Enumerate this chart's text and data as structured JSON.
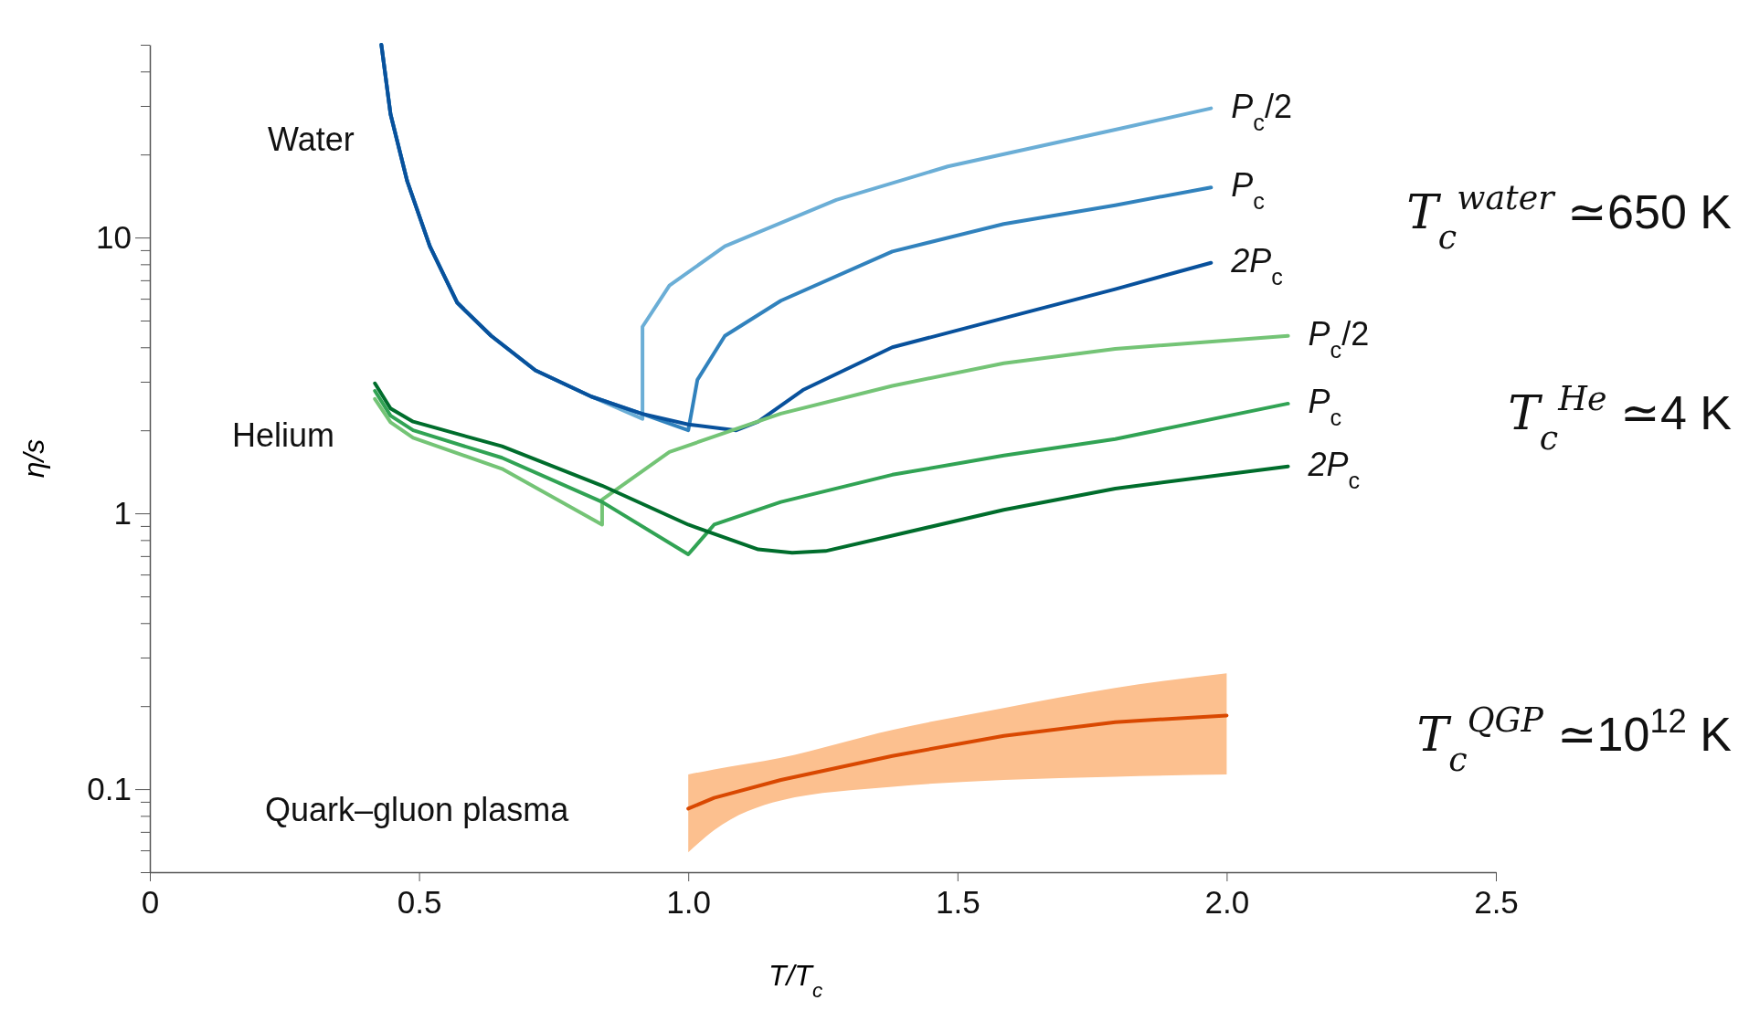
{
  "chart_data": {
    "type": "line",
    "xlabel": "T/T$_{c}$",
    "ylabel": "η/s",
    "log": "y",
    "xlim": [
      0,
      2.5
    ],
    "ylim": [
      0.05,
      50
    ],
    "xticks": [
      0,
      0.5,
      {
        "value": 1,
        "label": "1.0"
      },
      1.5,
      {
        "value": 2,
        "label": "2.0"
      },
      2.5
    ],
    "yticks": [
      {
        "value": 0.05,
        "label": null
      },
      {
        "value": 0.06,
        "label": null
      },
      {
        "value": 0.07,
        "label": null
      },
      {
        "value": 0.08,
        "label": null
      },
      {
        "value": 0.09,
        "label": null
      },
      0.1,
      {
        "value": 0.2,
        "label": null
      },
      {
        "value": 0.3,
        "label": null
      },
      {
        "value": 0.4,
        "label": null
      },
      {
        "value": 0.5,
        "label": null
      },
      {
        "value": 0.6,
        "label": null
      },
      {
        "value": 0.7,
        "label": null
      },
      {
        "value": 0.8,
        "label": null
      },
      {
        "value": 0.9,
        "label": null
      },
      1,
      {
        "value": 2,
        "label": null
      },
      {
        "value": 3,
        "label": null
      },
      {
        "value": 4,
        "label": null
      },
      {
        "value": 5,
        "label": null
      },
      {
        "value": 6,
        "label": null
      },
      {
        "value": 7,
        "label": null
      },
      {
        "value": 8,
        "label": null
      },
      {
        "value": 9,
        "label": null
      },
      10,
      {
        "value": 20,
        "label": null
      },
      {
        "value": 30,
        "label": null
      },
      {
        "value": 40,
        "label": null
      },
      {
        "value": 50,
        "label": null
      }
    ],
    "grid": false,
    "annotations": [
      "Water",
      "Helium",
      "Quark–gluon plasma",
      "T$_{c}$$^{water}$ ≃650 K",
      "T$_{c}$$^{He}$ ≃4 K",
      "T$_{c}$$^{QGP}$ ≃10$^{12}$ K"
    ],
    "series": [
      {
        "name": "P$_{c}$/2",
        "color": "#6baed6",
        "x": [
          0.43,
          0.447,
          0.478,
          0.52,
          0.571,
          0.634,
          0.716,
          0.82,
          0.915,
          0.915,
          0.965,
          1.068,
          1.275,
          1.482,
          1.793,
          1.971
        ],
        "values": [
          50,
          28,
          16,
          9.3,
          5.8,
          4.4,
          3.3,
          2.65,
          2.2,
          4.75,
          6.7,
          9.3,
          13.7,
          18.1,
          24.6,
          29.4
        ]
      },
      {
        "name": "P$_{c}$",
        "color": "#3182bd",
        "x": [
          0.43,
          0.447,
          0.478,
          0.52,
          0.571,
          0.634,
          0.716,
          0.82,
          0.913,
          1.0,
          1.017,
          1.068,
          1.172,
          1.379,
          1.586,
          1.793,
          1.971
        ],
        "values": [
          50,
          28,
          16,
          9.3,
          5.8,
          4.4,
          3.3,
          2.65,
          2.3,
          2.0,
          3.05,
          4.4,
          5.9,
          8.9,
          11.2,
          13.1,
          15.2
        ]
      },
      {
        "name": "2P$_{c}$",
        "color": "#08519c",
        "x": [
          0.43,
          0.447,
          0.478,
          0.52,
          0.571,
          0.634,
          0.716,
          0.82,
          0.913,
          1.0,
          1.089,
          1.13,
          1.213,
          1.379,
          1.586,
          1.793,
          1.971
        ],
        "values": [
          50,
          28,
          16,
          9.3,
          5.8,
          4.4,
          3.3,
          2.65,
          2.3,
          2.1,
          2.0,
          2.15,
          2.8,
          4.0,
          5.1,
          6.5,
          8.1
        ]
      },
      {
        "name": "P$_{c}$/2",
        "color": "#74c476",
        "x": [
          0.418,
          0.447,
          0.489,
          0.654,
          0.84,
          0.84,
          0.965,
          1.172,
          1.379,
          1.586,
          1.793,
          2.114
        ],
        "values": [
          2.6,
          2.14,
          1.88,
          1.45,
          0.91,
          1.12,
          1.67,
          2.3,
          2.9,
          3.5,
          3.95,
          4.4
        ]
      },
      {
        "name": "P$_{c}$",
        "color": "#31a354",
        "x": [
          0.418,
          0.447,
          0.489,
          0.654,
          0.84,
          1.0,
          1.048,
          1.172,
          1.379,
          1.586,
          1.793,
          2.114
        ],
        "values": [
          2.78,
          2.26,
          2.0,
          1.59,
          1.1,
          0.71,
          0.91,
          1.1,
          1.38,
          1.62,
          1.86,
          2.5
        ]
      },
      {
        "name": "2P$_{c}$",
        "color": "#006d2c",
        "x": [
          0.418,
          0.447,
          0.489,
          0.654,
          0.84,
          1.0,
          1.13,
          1.193,
          1.255,
          1.379,
          1.586,
          1.793,
          2.114
        ],
        "values": [
          2.96,
          2.4,
          2.15,
          1.75,
          1.26,
          0.91,
          0.74,
          0.72,
          0.73,
          0.83,
          1.03,
          1.23,
          1.48
        ]
      },
      {
        "color": "#d94801",
        "x": [
          1.0,
          1.048,
          1.172,
          1.379,
          1.586,
          1.793,
          2.0
        ],
        "values": [
          0.085,
          0.093,
          0.108,
          0.132,
          0.156,
          0.175,
          0.185
        ],
        "lower": [
          0.059,
          0.071,
          0.091,
          0.102,
          0.108,
          0.111,
          0.113
        ],
        "upper": [
          0.113,
          0.118,
          0.13,
          0.164,
          0.197,
          0.233,
          0.263
        ]
      }
    ]
  }
}
